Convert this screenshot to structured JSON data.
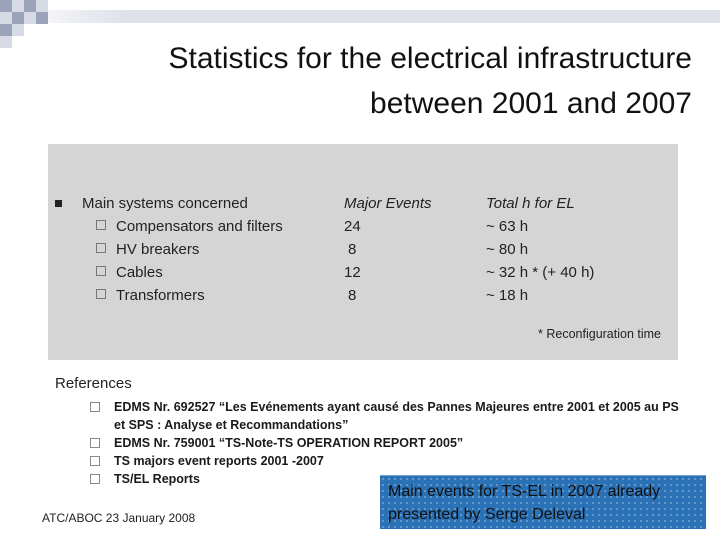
{
  "title": {
    "line1": "Statistics for the electrical infrastructure",
    "line2": "between 2001 and 2007"
  },
  "table": {
    "systems_header": "Main systems concerned",
    "events_header": "Major Events",
    "hours_header": "Total h for EL",
    "rows": [
      {
        "system": "Compensators and filters",
        "events": "24",
        "hours": "~ 63 h"
      },
      {
        "system": "HV breakers",
        "events": "8",
        "hours": "~ 80 h"
      },
      {
        "system": "Cables",
        "events": "12",
        "hours": "~ 32 h * (+ 40 h)"
      },
      {
        "system": "Transformers",
        "events": "8",
        "hours": "~ 18 h"
      }
    ],
    "footnote": "* Reconfiguration time"
  },
  "references": {
    "heading": "References",
    "items": [
      "EDMS Nr. 692527 “Les Evénements ayant causé des Pannes Majeures entre 2001 et 2005 au PS et SPS : Analyse et Recommandations”",
      "EDMS Nr. 759001 “TS-Note-TS OPERATION REPORT 2005”",
      "TS majors event reports 2001 -2007",
      "TS/EL Reports"
    ]
  },
  "footer": "ATC/ABOC 23 January 2008",
  "callout": {
    "line1": "Main events for TS-EL in 2007 already",
    "line2": "presented by Serge Deleval"
  }
}
